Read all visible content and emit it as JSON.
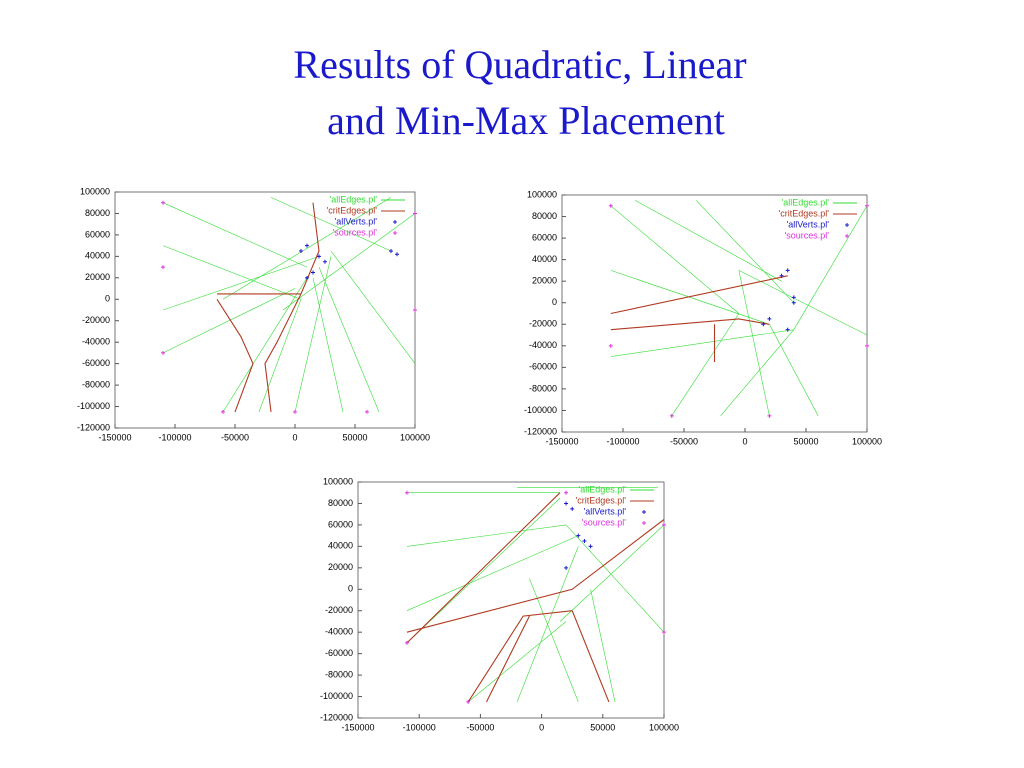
{
  "title_lines": [
    "Results of Quadratic, Linear",
    "and Min-Max Placement"
  ],
  "chart_data": [
    {
      "type": "line",
      "xlim": [
        -150000,
        100000
      ],
      "ylim": [
        -120000,
        100000
      ],
      "xticks": [
        -150000,
        -100000,
        -50000,
        0,
        50000,
        100000
      ],
      "yticks": [
        -120000,
        -100000,
        -80000,
        -60000,
        -40000,
        -20000,
        0,
        20000,
        40000,
        60000,
        80000,
        100000
      ],
      "series": [
        {
          "name": "'allEdges.pl'",
          "color": "#33dd33",
          "style": "lines",
          "x": [
            -110000,
            10000,
            null,
            -110000,
            5000,
            null,
            -110000,
            20000,
            null,
            -110000,
            0,
            null,
            -60000,
            10000,
            null,
            -30000,
            5000,
            null,
            0,
            30000,
            null,
            40000,
            15000,
            null,
            70000,
            20000,
            null,
            100000,
            -10000,
            null,
            100000,
            30000,
            null,
            -20000,
            80000,
            null,
            80000,
            -60000
          ],
          "values": [
            90000,
            30000,
            null,
            50000,
            0,
            null,
            -10000,
            40000,
            null,
            -50000,
            10000,
            null,
            -105000,
            20000,
            null,
            -105000,
            0,
            null,
            -105000,
            40000,
            null,
            -105000,
            20000,
            null,
            -105000,
            30000,
            null,
            80000,
            -10000,
            null,
            -60000,
            45000,
            null,
            95000,
            45000,
            null,
            95000,
            0
          ]
        },
        {
          "name": "'critEdges.pl'",
          "color": "#b03a20",
          "style": "lines",
          "x": [
            -65000,
            5000,
            null,
            -65000,
            -45000,
            -35000,
            -50000,
            null,
            5000,
            -15000,
            -25000,
            -20000,
            null,
            5000,
            20000,
            15000
          ],
          "values": [
            5000,
            5000,
            null,
            0,
            -35000,
            -60000,
            -105000,
            null,
            5000,
            -40000,
            -60000,
            -105000,
            null,
            5000,
            45000,
            90000
          ]
        },
        {
          "name": "'allVerts.pl'",
          "color": "#1a1acc",
          "style": "points",
          "x": [
            10000,
            15000,
            20000,
            25000,
            5000,
            80000,
            85000,
            10000
          ],
          "values": [
            20000,
            25000,
            40000,
            35000,
            45000,
            45000,
            42000,
            50000
          ]
        },
        {
          "name": "'sources.pl'",
          "color": "#dd33dd",
          "style": "points",
          "x": [
            -110000,
            -110000,
            -110000,
            -60000,
            0,
            60000,
            100000,
            100000
          ],
          "values": [
            90000,
            30000,
            -50000,
            -105000,
            -105000,
            -105000,
            80000,
            -10000
          ]
        }
      ]
    },
    {
      "type": "line",
      "xlim": [
        -150000,
        100000
      ],
      "ylim": [
        -120000,
        100000
      ],
      "xticks": [
        -150000,
        -100000,
        -50000,
        0,
        50000,
        100000
      ],
      "yticks": [
        -120000,
        -100000,
        -80000,
        -60000,
        -40000,
        -20000,
        0,
        20000,
        40000,
        60000,
        80000,
        100000
      ],
      "series": [
        {
          "name": "'allEdges.pl'",
          "color": "#33dd33",
          "style": "lines",
          "x": [
            -110000,
            -5000,
            null,
            -110000,
            20000,
            null,
            -110000,
            40000,
            null,
            -60000,
            -5000,
            null,
            -20000,
            40000,
            null,
            20000,
            -5000,
            null,
            60000,
            20000,
            null,
            100000,
            40000,
            null,
            100000,
            -5000,
            null,
            -40000,
            40000,
            null,
            -90000,
            30000
          ],
          "values": [
            90000,
            -10000,
            null,
            30000,
            -20000,
            null,
            -50000,
            -25000,
            null,
            -105000,
            -10000,
            null,
            -105000,
            -25000,
            null,
            -105000,
            30000,
            null,
            -105000,
            -20000,
            null,
            90000,
            -25000,
            null,
            -30000,
            30000,
            null,
            95000,
            0,
            null,
            95000,
            20000
          ]
        },
        {
          "name": "'critEdges.pl'",
          "color": "#b03a20",
          "style": "lines",
          "x": [
            -110000,
            35000,
            null,
            -110000,
            -5000,
            20000,
            null,
            -25000,
            -25000
          ],
          "values": [
            -10000,
            25000,
            null,
            -25000,
            -15000,
            -20000,
            null,
            -20000,
            -55000
          ]
        },
        {
          "name": "'allVerts.pl'",
          "color": "#1a1acc",
          "style": "points",
          "x": [
            15000,
            20000,
            35000,
            40000,
            35000,
            40000,
            30000
          ],
          "values": [
            -20000,
            -15000,
            -25000,
            0,
            30000,
            5000,
            25000
          ]
        },
        {
          "name": "'sources.pl'",
          "color": "#dd33dd",
          "style": "points",
          "x": [
            -110000,
            -110000,
            -60000,
            20000,
            100000,
            100000
          ],
          "values": [
            90000,
            -40000,
            -105000,
            -105000,
            90000,
            -40000
          ]
        }
      ]
    },
    {
      "type": "line",
      "xlim": [
        -150000,
        100000
      ],
      "ylim": [
        -120000,
        100000
      ],
      "xticks": [
        -150000,
        -100000,
        -50000,
        0,
        50000,
        100000
      ],
      "yticks": [
        -120000,
        -100000,
        -80000,
        -60000,
        -40000,
        -20000,
        0,
        20000,
        40000,
        60000,
        80000,
        100000
      ],
      "series": [
        {
          "name": "'allEdges.pl'",
          "color": "#33dd33",
          "style": "lines",
          "x": [
            -110000,
            15000,
            null,
            -110000,
            20000,
            null,
            -110000,
            30000,
            null,
            -110000,
            15000,
            null,
            -60000,
            20000,
            null,
            -20000,
            30000,
            null,
            30000,
            -10000,
            null,
            60000,
            40000,
            null,
            100000,
            15000,
            null,
            100000,
            20000,
            null,
            -20000,
            95000
          ],
          "values": [
            90000,
            90000,
            null,
            40000,
            60000,
            null,
            -20000,
            50000,
            null,
            -50000,
            85000,
            null,
            -105000,
            -30000,
            null,
            -105000,
            40000,
            null,
            -105000,
            10000,
            null,
            -105000,
            0,
            null,
            60000,
            -30000,
            null,
            -40000,
            60000,
            null,
            95000,
            95000
          ]
        },
        {
          "name": "'critEdges.pl'",
          "color": "#b03a20",
          "style": "lines",
          "x": [
            -110000,
            15000,
            null,
            -110000,
            25000,
            100000,
            null,
            -60000,
            -15000,
            25000,
            null,
            25000,
            55000,
            null,
            -10000,
            -45000
          ],
          "values": [
            -50000,
            90000,
            null,
            -40000,
            0,
            65000,
            null,
            -105000,
            -25000,
            -20000,
            null,
            -20000,
            -105000,
            null,
            -25000,
            -105000
          ]
        },
        {
          "name": "'allVerts.pl'",
          "color": "#1a1acc",
          "style": "points",
          "x": [
            20000,
            25000,
            30000,
            35000,
            20000,
            40000
          ],
          "values": [
            80000,
            75000,
            50000,
            45000,
            20000,
            40000
          ]
        },
        {
          "name": "'sources.pl'",
          "color": "#dd33dd",
          "style": "points",
          "x": [
            -110000,
            -110000,
            -60000,
            20000,
            100000,
            100000
          ],
          "values": [
            90000,
            -50000,
            -105000,
            90000,
            60000,
            -40000
          ]
        }
      ]
    }
  ]
}
